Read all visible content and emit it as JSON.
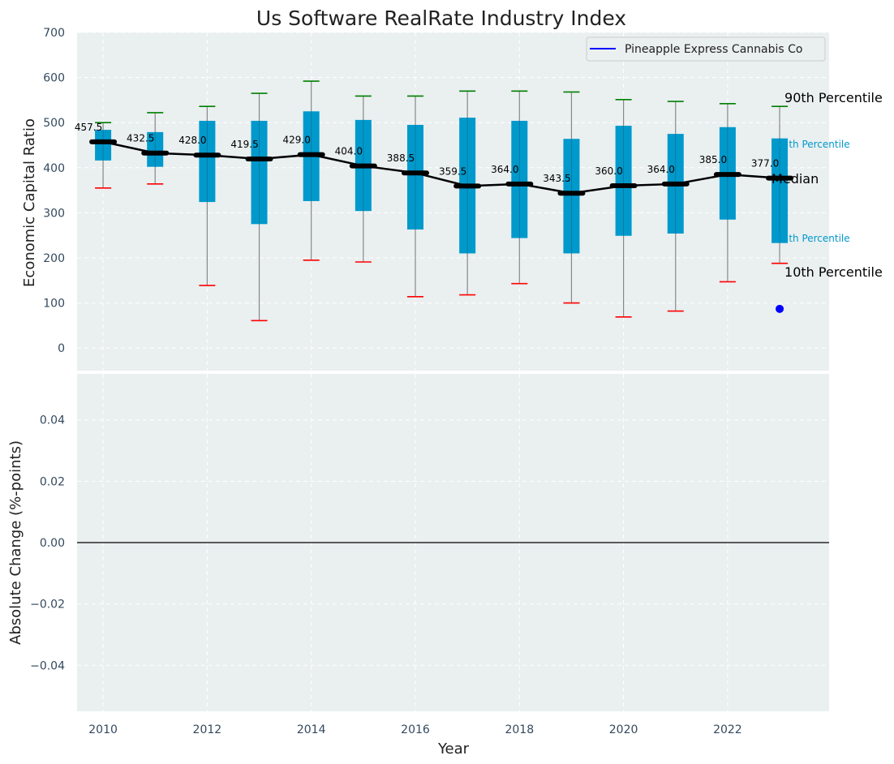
{
  "chart_data": {
    "type": "box",
    "title": "Us Software RealRate Industry Index",
    "xlabel": "Year",
    "top_panel": {
      "ylabel": "Economic Capital Ratio",
      "ylim": [
        -50,
        700
      ],
      "yticks": [
        0,
        100,
        200,
        300,
        400,
        500,
        600,
        700
      ],
      "years": [
        2010,
        2011,
        2012,
        2013,
        2014,
        2015,
        2016,
        2017,
        2018,
        2019,
        2020,
        2021,
        2022,
        2023
      ],
      "p10": [
        355,
        364,
        139,
        61,
        195,
        191,
        114,
        118,
        143,
        100,
        69,
        82,
        147,
        188
      ],
      "p25": [
        416,
        402,
        324,
        275,
        326,
        304,
        263,
        210,
        244,
        210,
        249,
        254,
        285,
        233
      ],
      "median": [
        457.5,
        432.5,
        428.0,
        419.5,
        429.0,
        404.0,
        388.5,
        359.5,
        364.0,
        343.5,
        360.0,
        364.0,
        385.0,
        377.0
      ],
      "median_labels": [
        "457.5",
        "432.5",
        "428.0",
        "419.5",
        "429.0",
        "404.0",
        "388.5",
        "359.5",
        "364.0",
        "343.5",
        "360.0",
        "364.0",
        "385.0",
        "377.0"
      ],
      "p75": [
        484,
        479,
        504,
        504,
        525,
        506,
        495,
        511,
        504,
        464,
        493,
        475,
        490,
        465
      ],
      "p90": [
        500,
        522,
        536,
        565,
        592,
        559,
        559,
        570,
        570,
        568,
        551,
        547,
        542,
        536
      ],
      "company": {
        "name": "Pineapple Express Cannabis Co",
        "x": 2023,
        "y": 87
      },
      "percentile_labels": {
        "p90": "90th Percentile",
        "p75": "75th Percentile",
        "median": "Median",
        "p25": "25th Percentile",
        "p10": "10th Percentile"
      }
    },
    "bottom_panel": {
      "ylabel": "Absolute Change (%-points)",
      "ylim": [
        -0.055,
        0.055
      ],
      "yticks": [
        0.04,
        0.02,
        0.0,
        -0.02,
        -0.04
      ],
      "ytick_labels": [
        "0.04",
        "0.02",
        "0.00",
        "−0.02",
        "−0.04"
      ]
    },
    "xticks": [
      2010,
      2012,
      2014,
      2016,
      2018,
      2020,
      2022
    ],
    "xlim": [
      2009.5,
      2023.95
    ],
    "legend": {
      "label": "Pineapple Express Cannabis Co",
      "placement": "top-right"
    },
    "colors": {
      "background": "#eaeff0",
      "box": "#0099cc",
      "median_line": "#000000",
      "p90_cap": "#008000",
      "p10_cap": "#ff0000",
      "whisker": "#888888",
      "company_dot": "#0000ff",
      "legend_line": "#0000ff",
      "grid": "#ffffff"
    },
    "grid": true
  }
}
